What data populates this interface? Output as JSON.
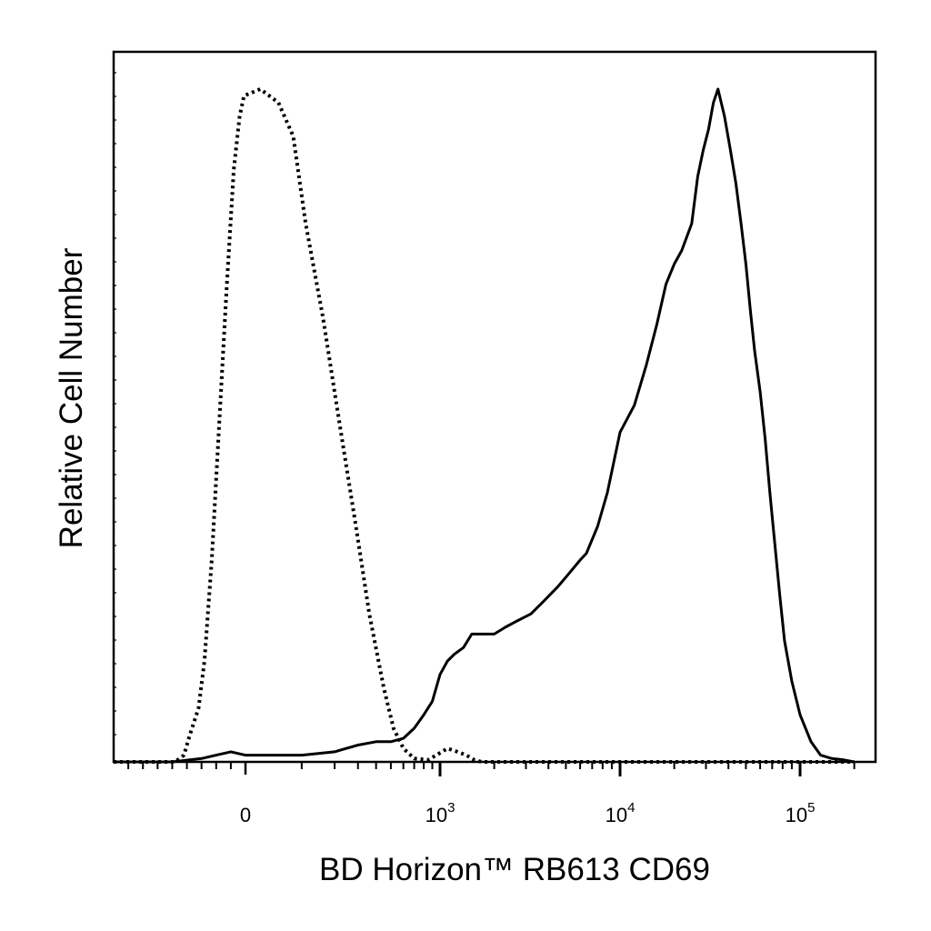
{
  "chart_data": {
    "type": "line",
    "title": "",
    "xlabel": "BD Horizon™ RB613 CD69",
    "ylabel": "Relative Cell Number",
    "x_scale": "biexponential",
    "x_ticks": [
      {
        "value": 0,
        "base": "0",
        "exp": ""
      },
      {
        "value": 1000,
        "base": "10",
        "exp": "3"
      },
      {
        "value": 10000,
        "base": "10",
        "exp": "4"
      },
      {
        "value": 100000,
        "base": "10",
        "exp": "5"
      }
    ],
    "xlim": [
      -900,
      200000
    ],
    "ylim": [
      0,
      100
    ],
    "grid": false,
    "legend": "none",
    "series": [
      {
        "style": "dotted",
        "color": "#000000",
        "points": [
          [
            -900,
            0
          ],
          [
            -480,
            0
          ],
          [
            -420,
            1
          ],
          [
            -380,
            4
          ],
          [
            -320,
            8
          ],
          [
            -280,
            15
          ],
          [
            -230,
            30
          ],
          [
            -180,
            50
          ],
          [
            -130,
            70
          ],
          [
            -80,
            88
          ],
          [
            -40,
            96
          ],
          [
            -10,
            99
          ],
          [
            20,
            100
          ],
          [
            50,
            98
          ],
          [
            80,
            93
          ],
          [
            110,
            80
          ],
          [
            160,
            66
          ],
          [
            220,
            50
          ],
          [
            290,
            35
          ],
          [
            360,
            22
          ],
          [
            450,
            11
          ],
          [
            520,
            5
          ],
          [
            600,
            2
          ],
          [
            700,
            0.5
          ],
          [
            850,
            0.3
          ],
          [
            950,
            1
          ],
          [
            1100,
            2
          ],
          [
            1250,
            1.5
          ],
          [
            1400,
            1
          ],
          [
            1550,
            0.3
          ],
          [
            1700,
            0
          ],
          [
            200000,
            0
          ]
        ]
      },
      {
        "style": "solid",
        "color": "#000000",
        "points": [
          [
            -900,
            0
          ],
          [
            -500,
            0
          ],
          [
            -300,
            0.5
          ],
          [
            -200,
            1
          ],
          [
            -100,
            1.5
          ],
          [
            0,
            1
          ],
          [
            100,
            1
          ],
          [
            200,
            1.5
          ],
          [
            300,
            2.5
          ],
          [
            400,
            3
          ],
          [
            500,
            3
          ],
          [
            600,
            3.5
          ],
          [
            700,
            5
          ],
          [
            800,
            7
          ],
          [
            900,
            9
          ],
          [
            1000,
            13
          ],
          [
            1100,
            15
          ],
          [
            1200,
            16
          ],
          [
            1350,
            17
          ],
          [
            1500,
            19
          ],
          [
            1700,
            19
          ],
          [
            2000,
            19
          ],
          [
            2300,
            20
          ],
          [
            2700,
            21
          ],
          [
            3200,
            22
          ],
          [
            3800,
            24
          ],
          [
            4500,
            26
          ],
          [
            5200,
            28
          ],
          [
            6000,
            30
          ],
          [
            6500,
            31
          ],
          [
            7500,
            35
          ],
          [
            8500,
            40
          ],
          [
            10000,
            49
          ],
          [
            12000,
            53
          ],
          [
            14000,
            59
          ],
          [
            16000,
            65
          ],
          [
            18000,
            71
          ],
          [
            20000,
            74
          ],
          [
            22000,
            76
          ],
          [
            25000,
            80
          ],
          [
            27000,
            87
          ],
          [
            29000,
            91
          ],
          [
            31000,
            94
          ],
          [
            33000,
            98
          ],
          [
            35000,
            100
          ],
          [
            38000,
            96
          ],
          [
            41000,
            91
          ],
          [
            44000,
            86
          ],
          [
            47000,
            80
          ],
          [
            50000,
            74
          ],
          [
            53000,
            67
          ],
          [
            56000,
            61
          ],
          [
            60000,
            55
          ],
          [
            64000,
            48
          ],
          [
            68000,
            40
          ],
          [
            72000,
            33
          ],
          [
            77000,
            25
          ],
          [
            82000,
            18
          ],
          [
            90000,
            12
          ],
          [
            100000,
            7
          ],
          [
            115000,
            3
          ],
          [
            130000,
            1
          ],
          [
            150000,
            0.5
          ],
          [
            175000,
            0.3
          ],
          [
            200000,
            0
          ]
        ]
      }
    ]
  }
}
